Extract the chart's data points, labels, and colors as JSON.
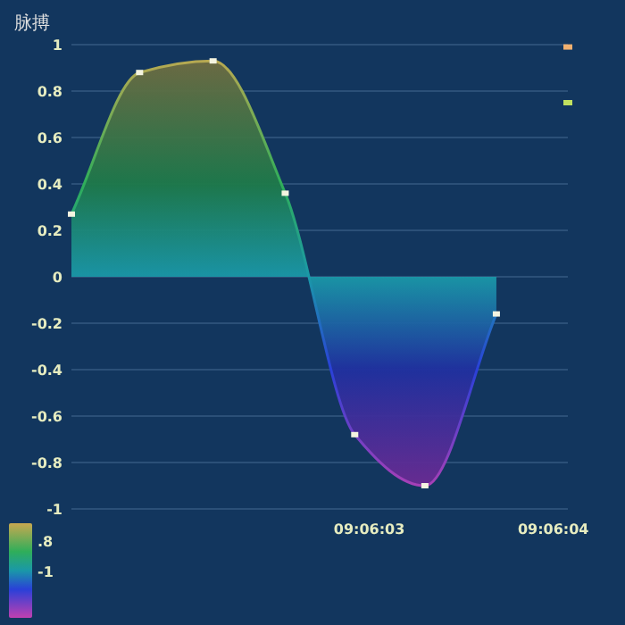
{
  "chart_data": {
    "type": "area",
    "title": "脉搏",
    "x": [
      9.100383,
      9.100486,
      9.100597,
      9.100706,
      9.100811,
      9.100917,
      9.101025
    ],
    "series": [
      {
        "color": "#1a98a8",
        "values": [
          0.27,
          0.88,
          0.93,
          0.36,
          -0.68,
          -0.9,
          -0.16
        ]
      },
      {
        "type": "scatter",
        "x": [
          9.101133,
          9.101133
        ],
        "values": [
          0.99,
          0.75
        ],
        "colors": [
          "#f0b070",
          "#c0e060"
        ]
      }
    ],
    "xlim": [
      9.100383,
      9.101133
    ],
    "xticks": [
      {
        "value": 9.100833,
        "label": "09:06:03"
      },
      {
        "value": 9.101111,
        "label": "09:06:04"
      }
    ],
    "ylim": [
      -1,
      1
    ],
    "yticks": [
      1,
      0.8,
      0.6,
      0.4,
      0.2,
      0,
      -0.2,
      -0.4,
      -0.6,
      -0.8,
      -1
    ],
    "grid": "y",
    "marker": "square",
    "annotations": [
      ".8",
      "-1"
    ]
  }
}
